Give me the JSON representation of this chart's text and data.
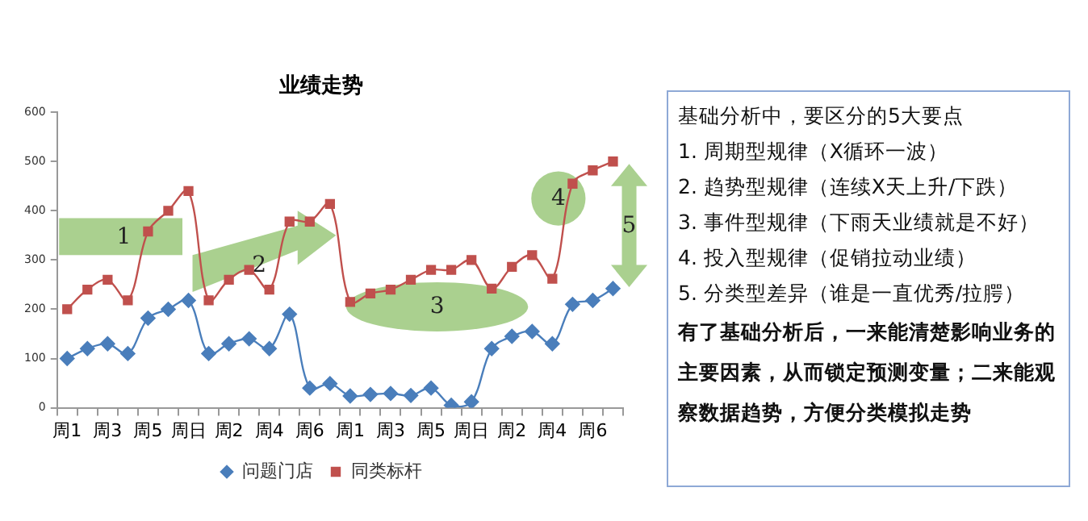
{
  "chart_data": {
    "type": "line",
    "title": "业绩走势",
    "categories": [
      "周1",
      null,
      "周3",
      null,
      "周5",
      null,
      "周日",
      null,
      "周2",
      null,
      "周4",
      null,
      "周6",
      null,
      "周1",
      null,
      "周3",
      null,
      "周5",
      null,
      "周日",
      null,
      "周2",
      null,
      "周4",
      null,
      "周6",
      null
    ],
    "series": [
      {
        "name": "问题门店",
        "color": "#4a7ebb",
        "marker": "diamond",
        "values": [
          100,
          120,
          130,
          110,
          182,
          200,
          218,
          110,
          130,
          140,
          120,
          190,
          40,
          49,
          24,
          27,
          29,
          25,
          40,
          5,
          12,
          120,
          145,
          155,
          130,
          210,
          218,
          242
        ]
      },
      {
        "name": "同类标杆",
        "color": "#c0504d",
        "marker": "square",
        "values": [
          200,
          240,
          260,
          218,
          358,
          400,
          440,
          218,
          260,
          280,
          240,
          378,
          378,
          414,
          215,
          232,
          240,
          260,
          280,
          280,
          300,
          242,
          286,
          310,
          262,
          455,
          482,
          500
        ]
      }
    ],
    "ylim": [
      0,
      600
    ],
    "yticks": [
      0,
      100,
      200,
      300,
      400,
      500,
      600
    ],
    "grid": false,
    "legend": "bottom",
    "annotations": [
      "1",
      "2",
      "3",
      "4",
      "5",
      "基础分析中，要区分的5大要点",
      "1. 周期型规律（X循环一波）",
      "2. 趋势型规律（连续X天上升/下跌）",
      "3. 事件型规律（下雨天业绩就是不好）",
      "4. 投入型规律（促销拉动业绩）",
      "5. 分类型差异（谁是一直优秀/拉腭）",
      "有了基础分析后，一来能清楚影响业务的主要因素，从而锁定预测变量；二来能观察数据趋势，方便分类模拟走势"
    ]
  }
}
